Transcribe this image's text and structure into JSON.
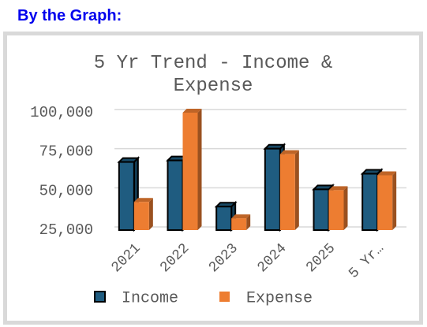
{
  "heading": "By the Graph:",
  "chart_data": {
    "type": "bar3d",
    "title": "5 Yr Trend - Income & Expense",
    "categories": [
      "2021",
      "2022",
      "2023",
      "2024",
      "2025",
      "5 Yr…"
    ],
    "series": [
      {
        "name": "Income",
        "color": "#1f5c80",
        "values": [
          68500,
          69500,
          40000,
          77000,
          51000,
          61000
        ]
      },
      {
        "name": "Expense",
        "color": "#ed7d31",
        "values": [
          43000,
          100000,
          32500,
          73500,
          50500,
          60000
        ]
      }
    ],
    "ylim": [
      25000,
      100000
    ],
    "yticks": [
      {
        "value": 25000,
        "label": "25,000"
      },
      {
        "value": 50000,
        "label": "50,000"
      },
      {
        "value": 75000,
        "label": "75,000"
      },
      {
        "value": 100000,
        "label": "100,000"
      }
    ],
    "grid": true
  }
}
